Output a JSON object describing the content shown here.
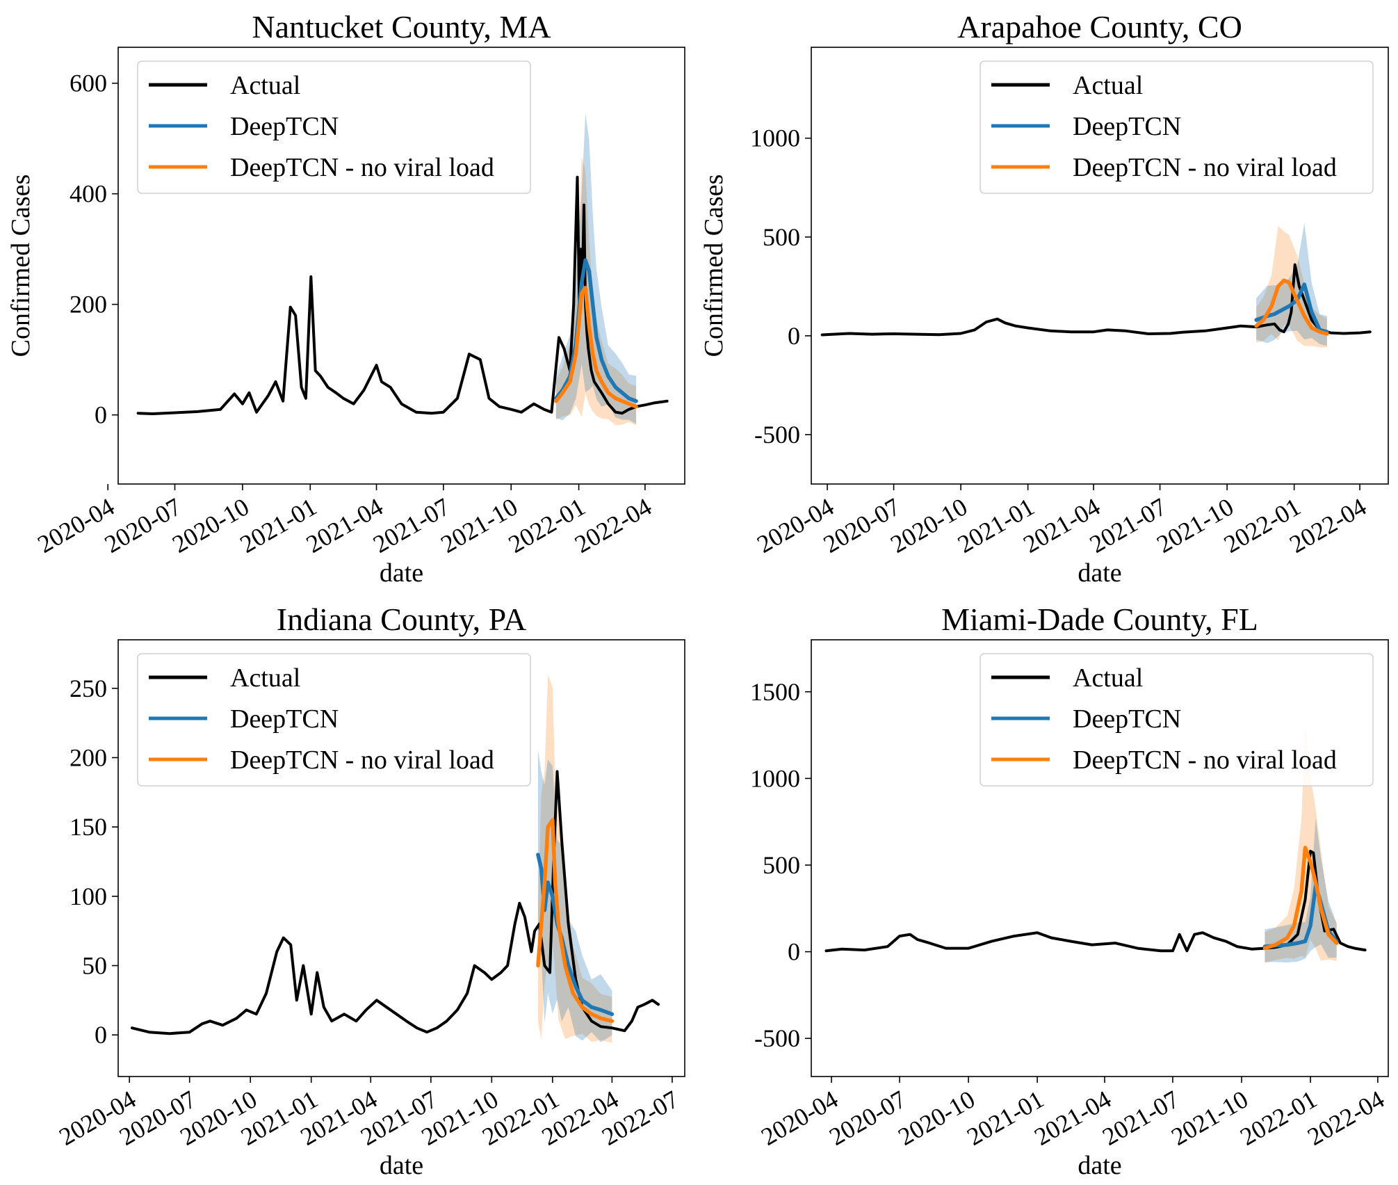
{
  "figure": {
    "line_labels": {
      "actual": "Actual",
      "deeptcn": "DeepTCN",
      "no_vl": "DeepTCN - no viral load"
    },
    "colors": {
      "actual": "#000000",
      "deeptcn": "#1f77b4",
      "no_vl": "#ff7f0e"
    }
  },
  "chart_data": [
    {
      "type": "line",
      "title": "Nantucket County, MA",
      "xlabel": "date",
      "ylabel": "Confirmed Cases",
      "ylim": [
        -125,
        665
      ],
      "yticks": [
        0,
        200,
        400,
        600
      ],
      "xlim": [
        "2020-04-15",
        "2022-05-25"
      ],
      "xticks": [
        "2020-04",
        "2020-07",
        "2020-10",
        "2021-01",
        "2021-04",
        "2021-07",
        "2021-10",
        "2022-01",
        "2022-04"
      ],
      "legend": "top-left",
      "series": [
        {
          "name": "Actual",
          "x": [
            "2020-05-12",
            "2020-06-01",
            "2020-07-01",
            "2020-08-01",
            "2020-09-01",
            "2020-09-20",
            "2020-10-01",
            "2020-10-10",
            "2020-10-20",
            "2020-11-05",
            "2020-11-15",
            "2020-11-25",
            "2020-12-05",
            "2020-12-12",
            "2020-12-20",
            "2020-12-26",
            "2021-01-02",
            "2021-01-08",
            "2021-01-15",
            "2021-01-25",
            "2021-02-05",
            "2021-02-15",
            "2021-03-01",
            "2021-03-15",
            "2021-04-01",
            "2021-04-08",
            "2021-04-20",
            "2021-05-05",
            "2021-05-25",
            "2021-06-15",
            "2021-07-01",
            "2021-07-20",
            "2021-08-05",
            "2021-08-20",
            "2021-09-01",
            "2021-09-15",
            "2021-10-01",
            "2021-10-15",
            "2021-11-01",
            "2021-11-15",
            "2021-11-25",
            "2021-12-05",
            "2021-12-12",
            "2021-12-20",
            "2021-12-25",
            "2021-12-30",
            "2022-01-02",
            "2022-01-04",
            "2022-01-06",
            "2022-01-08",
            "2022-01-10",
            "2022-01-12",
            "2022-01-14",
            "2022-01-18",
            "2022-01-22",
            "2022-02-01",
            "2022-02-10",
            "2022-02-20",
            "2022-03-01",
            "2022-03-10",
            "2022-03-20",
            "2022-04-01",
            "2022-04-15",
            "2022-05-01"
          ],
          "y": [
            3,
            2,
            4,
            6,
            10,
            38,
            20,
            40,
            5,
            35,
            60,
            25,
            195,
            180,
            50,
            30,
            250,
            80,
            70,
            50,
            40,
            30,
            20,
            45,
            90,
            60,
            50,
            20,
            5,
            3,
            5,
            30,
            110,
            100,
            30,
            15,
            10,
            5,
            20,
            10,
            5,
            140,
            120,
            80,
            200,
            430,
            180,
            300,
            250,
            380,
            200,
            150,
            120,
            80,
            60,
            40,
            20,
            5,
            3,
            10,
            15,
            18,
            22,
            25
          ]
        },
        {
          "name": "DeepTCN",
          "x": [
            "2021-12-01",
            "2021-12-10",
            "2021-12-20",
            "2021-12-28",
            "2022-01-05",
            "2022-01-10",
            "2022-01-15",
            "2022-01-20",
            "2022-01-25",
            "2022-02-01",
            "2022-02-10",
            "2022-02-20",
            "2022-03-01",
            "2022-03-10",
            "2022-03-20"
          ],
          "y": [
            30,
            45,
            70,
            130,
            240,
            280,
            260,
            200,
            140,
            100,
            70,
            50,
            40,
            30,
            25
          ]
        },
        {
          "name": "DeepTCN - no viral load",
          "x": [
            "2021-12-01",
            "2021-12-10",
            "2021-12-20",
            "2021-12-28",
            "2022-01-05",
            "2022-01-10",
            "2022-01-15",
            "2022-01-20",
            "2022-01-25",
            "2022-02-01",
            "2022-02-10",
            "2022-02-20",
            "2022-03-01",
            "2022-03-10",
            "2022-03-20"
          ],
          "y": [
            25,
            40,
            60,
            110,
            220,
            230,
            160,
            110,
            80,
            60,
            40,
            30,
            25,
            20,
            15
          ]
        }
      ]
    },
    {
      "type": "line",
      "title": "Arapahoe County, CO",
      "xlabel": "date",
      "ylabel": "Confirmed Cases",
      "ylim": [
        -750,
        1460
      ],
      "yticks": [
        -500,
        0,
        500,
        1000
      ],
      "xlim": [
        "2020-03-10",
        "2022-05-10"
      ],
      "xticks": [
        "2020-04",
        "2020-07",
        "2020-10",
        "2021-01",
        "2021-04",
        "2021-07",
        "2021-10",
        "2022-01",
        "2022-04"
      ],
      "legend": "top-right",
      "series": [
        {
          "name": "Actual",
          "x": [
            "2020-03-25",
            "2020-05-01",
            "2020-06-01",
            "2020-07-01",
            "2020-08-01",
            "2020-09-01",
            "2020-10-01",
            "2020-10-20",
            "2020-11-05",
            "2020-11-20",
            "2020-12-01",
            "2020-12-15",
            "2021-01-01",
            "2021-02-01",
            "2021-03-01",
            "2021-04-01",
            "2021-04-20",
            "2021-05-15",
            "2021-06-15",
            "2021-07-15",
            "2021-08-01",
            "2021-09-01",
            "2021-10-01",
            "2021-10-20",
            "2021-11-10",
            "2021-11-25",
            "2021-12-05",
            "2021-12-12",
            "2021-12-18",
            "2021-12-24",
            "2021-12-28",
            "2022-01-02",
            "2022-01-08",
            "2022-01-15",
            "2022-01-25",
            "2022-02-05",
            "2022-02-20",
            "2022-03-10",
            "2022-04-01",
            "2022-04-15"
          ],
          "y": [
            5,
            12,
            8,
            10,
            8,
            6,
            12,
            30,
            70,
            85,
            65,
            50,
            40,
            25,
            20,
            20,
            30,
            25,
            10,
            12,
            18,
            25,
            40,
            50,
            45,
            55,
            60,
            30,
            20,
            60,
            120,
            360,
            250,
            180,
            80,
            30,
            15,
            12,
            15,
            20
          ]
        },
        {
          "name": "DeepTCN",
          "x": [
            "2021-11-10",
            "2021-11-25",
            "2021-12-05",
            "2021-12-15",
            "2021-12-25",
            "2022-01-05",
            "2022-01-15",
            "2022-01-25",
            "2022-02-05",
            "2022-02-15"
          ],
          "y": [
            80,
            100,
            110,
            130,
            150,
            180,
            260,
            120,
            30,
            20
          ]
        },
        {
          "name": "DeepTCN - no viral load",
          "x": [
            "2021-11-10",
            "2021-11-20",
            "2021-12-01",
            "2021-12-10",
            "2021-12-18",
            "2021-12-25",
            "2022-01-05",
            "2022-01-15",
            "2022-01-25",
            "2022-02-05",
            "2022-02-15"
          ],
          "y": [
            50,
            80,
            150,
            250,
            280,
            270,
            180,
            100,
            40,
            20,
            10
          ]
        }
      ]
    },
    {
      "type": "line",
      "title": "Indiana County, PA",
      "xlabel": "date",
      "ylabel": "",
      "ylim": [
        -30,
        285
      ],
      "yticks": [
        0,
        50,
        100,
        150,
        200,
        250
      ],
      "xlim": [
        "2020-03-15",
        "2022-07-20"
      ],
      "xticks": [
        "2020-04",
        "2020-07",
        "2020-10",
        "2021-01",
        "2021-04",
        "2021-07",
        "2021-10",
        "2022-01",
        "2022-04",
        "2022-07"
      ],
      "legend": "top-left",
      "series": [
        {
          "name": "Actual",
          "x": [
            "2020-04-05",
            "2020-05-01",
            "2020-06-01",
            "2020-07-01",
            "2020-07-20",
            "2020-08-01",
            "2020-08-20",
            "2020-09-10",
            "2020-09-25",
            "2020-10-10",
            "2020-10-25",
            "2020-11-10",
            "2020-11-20",
            "2020-12-01",
            "2020-12-10",
            "2020-12-20",
            "2021-01-01",
            "2021-01-10",
            "2021-01-20",
            "2021-02-01",
            "2021-02-20",
            "2021-03-10",
            "2021-03-25",
            "2021-04-10",
            "2021-04-25",
            "2021-05-10",
            "2021-05-25",
            "2021-06-10",
            "2021-06-25",
            "2021-07-10",
            "2021-07-25",
            "2021-08-10",
            "2021-08-25",
            "2021-09-05",
            "2021-09-20",
            "2021-10-01",
            "2021-10-15",
            "2021-10-25",
            "2021-11-05",
            "2021-11-12",
            "2021-11-20",
            "2021-11-30",
            "2021-12-05",
            "2021-12-12",
            "2021-12-20",
            "2021-12-28",
            "2022-01-03",
            "2022-01-08",
            "2022-01-15",
            "2022-01-25",
            "2022-02-05",
            "2022-02-15",
            "2022-03-01",
            "2022-03-15",
            "2022-04-01",
            "2022-04-20",
            "2022-05-01",
            "2022-05-10",
            "2022-05-20",
            "2022-06-01",
            "2022-06-10"
          ],
          "y": [
            5,
            2,
            1,
            2,
            8,
            10,
            7,
            12,
            18,
            15,
            30,
            60,
            70,
            65,
            25,
            50,
            15,
            45,
            20,
            10,
            15,
            10,
            18,
            25,
            20,
            15,
            10,
            5,
            2,
            5,
            10,
            18,
            30,
            50,
            45,
            40,
            45,
            50,
            80,
            95,
            85,
            60,
            75,
            80,
            50,
            45,
            130,
            190,
            140,
            80,
            40,
            20,
            10,
            6,
            5,
            3,
            10,
            20,
            22,
            25,
            22
          ]
        },
        {
          "name": "DeepTCN",
          "x": [
            "2021-12-10",
            "2021-12-15",
            "2021-12-20",
            "2021-12-25",
            "2022-01-01",
            "2022-01-08",
            "2022-01-15",
            "2022-01-25",
            "2022-02-05",
            "2022-02-15",
            "2022-03-01",
            "2022-03-15",
            "2022-04-01"
          ],
          "y": [
            130,
            120,
            90,
            110,
            100,
            80,
            70,
            50,
            35,
            25,
            20,
            18,
            15
          ]
        },
        {
          "name": "DeepTCN - no viral load",
          "x": [
            "2021-12-10",
            "2021-12-15",
            "2021-12-20",
            "2021-12-25",
            "2022-01-01",
            "2022-01-05",
            "2022-01-10",
            "2022-01-20",
            "2022-02-01",
            "2022-02-15",
            "2022-03-01",
            "2022-03-15",
            "2022-04-01"
          ],
          "y": [
            50,
            80,
            110,
            150,
            155,
            110,
            80,
            50,
            30,
            20,
            15,
            12,
            10
          ]
        }
      ]
    },
    {
      "type": "line",
      "title": "Miami-Dade County, FL",
      "xlabel": "date",
      "ylabel": "",
      "ylim": [
        -720,
        1800
      ],
      "yticks": [
        -500,
        0,
        500,
        1000,
        1500
      ],
      "xlim": [
        "2020-03-05",
        "2022-04-15"
      ],
      "xticks": [
        "2020-04",
        "2020-07",
        "2020-10",
        "2021-01",
        "2021-04",
        "2021-07",
        "2021-10",
        "2022-01",
        "2022-04"
      ],
      "legend": "top-right",
      "series": [
        {
          "name": "Actual",
          "x": [
            "2020-03-25",
            "2020-04-15",
            "2020-05-15",
            "2020-06-15",
            "2020-07-01",
            "2020-07-15",
            "2020-07-25",
            "2020-08-10",
            "2020-09-01",
            "2020-10-01",
            "2020-11-01",
            "2020-12-01",
            "2021-01-01",
            "2021-01-20",
            "2021-02-15",
            "2021-03-15",
            "2021-04-15",
            "2021-05-15",
            "2021-06-15",
            "2021-07-01",
            "2021-07-10",
            "2021-07-20",
            "2021-07-30",
            "2021-08-10",
            "2021-08-25",
            "2021-09-10",
            "2021-09-25",
            "2021-10-15",
            "2021-11-01",
            "2021-11-15",
            "2021-12-01",
            "2021-12-15",
            "2021-12-25",
            "2022-01-01",
            "2022-01-05",
            "2022-01-12",
            "2022-01-20",
            "2022-02-01",
            "2022-02-10",
            "2022-02-20",
            "2022-03-01",
            "2022-03-15"
          ],
          "y": [
            5,
            15,
            10,
            30,
            90,
            100,
            70,
            50,
            20,
            20,
            60,
            90,
            110,
            80,
            60,
            40,
            50,
            20,
            5,
            5,
            100,
            5,
            100,
            110,
            80,
            60,
            30,
            15,
            20,
            25,
            40,
            100,
            300,
            580,
            570,
            300,
            120,
            130,
            50,
            30,
            20,
            10
          ]
        },
        {
          "name": "DeepTCN",
          "x": [
            "2021-11-01",
            "2021-11-15",
            "2021-12-01",
            "2021-12-15",
            "2021-12-25",
            "2022-01-01",
            "2022-01-08",
            "2022-01-15",
            "2022-01-25",
            "2022-02-05"
          ],
          "y": [
            30,
            35,
            40,
            50,
            60,
            150,
            380,
            280,
            120,
            60
          ]
        },
        {
          "name": "DeepTCN - no viral load",
          "x": [
            "2021-11-01",
            "2021-11-15",
            "2021-12-01",
            "2021-12-10",
            "2021-12-20",
            "2021-12-25",
            "2022-01-01",
            "2022-01-08",
            "2022-01-15",
            "2022-01-25",
            "2022-02-05"
          ],
          "y": [
            20,
            40,
            80,
            150,
            350,
            600,
            520,
            400,
            250,
            100,
            50
          ]
        }
      ]
    }
  ]
}
